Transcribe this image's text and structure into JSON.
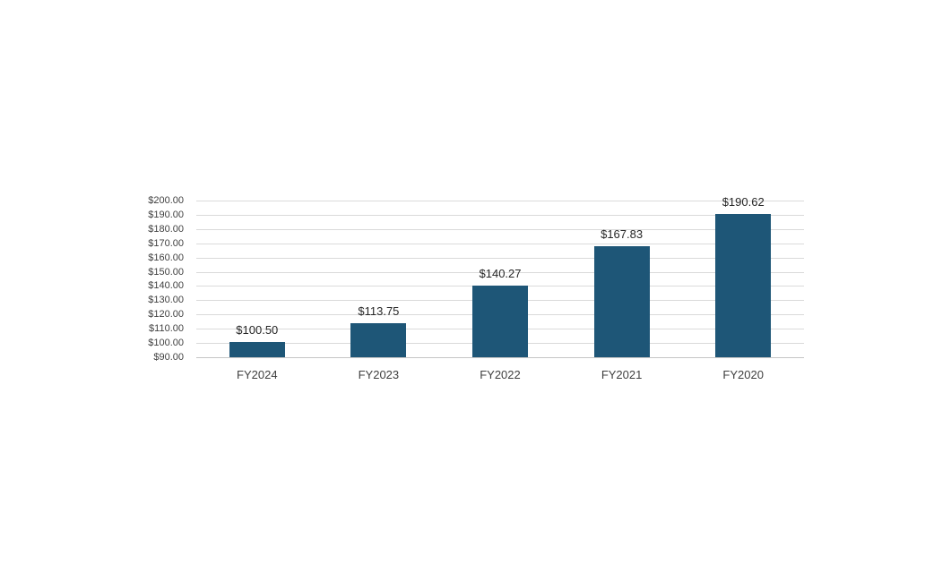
{
  "chart_data": {
    "type": "bar",
    "title": "",
    "xlabel": "",
    "ylabel": "",
    "categories": [
      "FY2024",
      "FY2023",
      "FY2022",
      "FY2021",
      "FY2020"
    ],
    "values": [
      100.5,
      113.75,
      140.27,
      167.83,
      190.62
    ],
    "data_labels": [
      "$100.50",
      "$113.75",
      "$140.27",
      "$167.83",
      "$190.62"
    ],
    "y_tick_labels": [
      "$200.00",
      "$190.00",
      "$180.00",
      "$170.00",
      "$160.00",
      "$150.00",
      "$140.00",
      "$130.00",
      "$120.00",
      "$110.00",
      "$100.00",
      "$90.00"
    ],
    "ylim": [
      90,
      200
    ],
    "y_tick_step": 10,
    "grid": true,
    "legend": false,
    "colors": {
      "bar": "#1E5677",
      "gridline": "#DADADA",
      "axis_line": "#C6C6C6",
      "tick_label": "#404040",
      "data_label": "#262626",
      "background": "#FFFFFF"
    }
  }
}
